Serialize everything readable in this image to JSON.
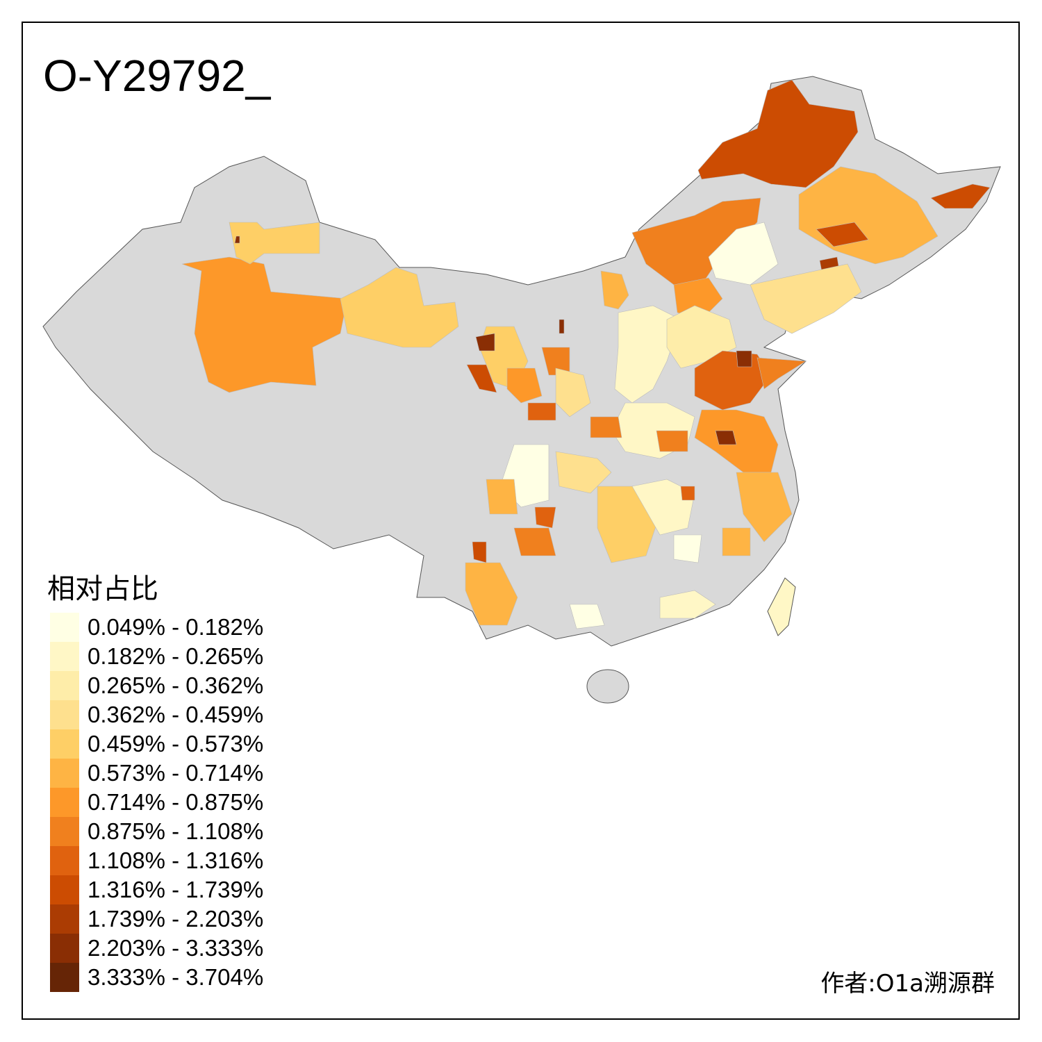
{
  "title": "O-Y29792_",
  "legend": {
    "title": "相对占比",
    "items": [
      {
        "label": "0.049% - 0.182%",
        "color": "#FFFFE4"
      },
      {
        "label": "0.182% - 0.265%",
        "color": "#FFF7C6"
      },
      {
        "label": "0.265% - 0.362%",
        "color": "#FEEDA9"
      },
      {
        "label": "0.362% - 0.459%",
        "color": "#FEE08E"
      },
      {
        "label": "0.459% - 0.573%",
        "color": "#FECF66"
      },
      {
        "label": "0.573% - 0.714%",
        "color": "#FEB444"
      },
      {
        "label": "0.714% - 0.875%",
        "color": "#FD9829"
      },
      {
        "label": "0.875% - 1.108%",
        "color": "#F0801E"
      },
      {
        "label": "1.108% - 1.316%",
        "color": "#E0620F"
      },
      {
        "label": "1.316% - 1.739%",
        "color": "#CC4C02"
      },
      {
        "label": "1.739% - 2.203%",
        "color": "#AB3C03"
      },
      {
        "label": "2.203% - 3.333%",
        "color": "#8A2E04"
      },
      {
        "label": "3.333% - 3.704%",
        "color": "#662506"
      }
    ]
  },
  "no_data_color": "#D9D9D9",
  "credit": "作者:O1a溯源群"
}
